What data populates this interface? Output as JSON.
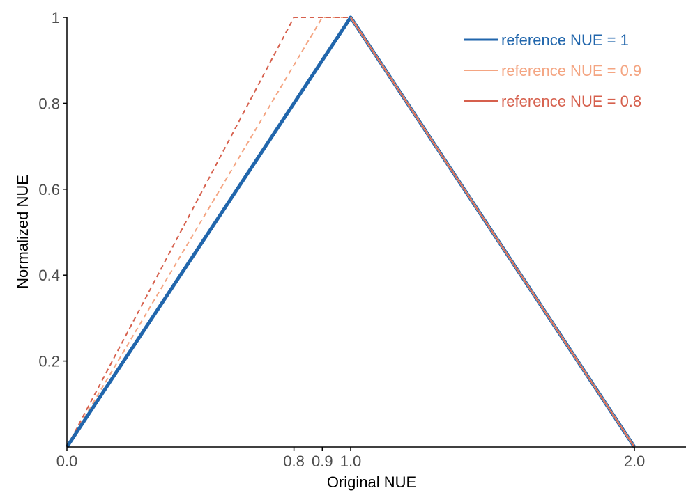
{
  "chart_data": {
    "type": "line",
    "title": "",
    "xlabel": "Original NUE",
    "ylabel": "Normalized NUE",
    "xlim": [
      0,
      2.2
    ],
    "ylim": [
      0,
      1
    ],
    "x_ticks": [
      0.0,
      0.8,
      0.9,
      1.0,
      2.0
    ],
    "x_tick_labels": [
      "0.0",
      "0.8",
      "0.9",
      "1.0",
      "2.0"
    ],
    "y_ticks": [
      0.2,
      0.4,
      0.6,
      0.8,
      1.0
    ],
    "y_tick_labels": [
      "0.2",
      "0.4",
      "0.6",
      "0.8",
      "1"
    ],
    "grid": false,
    "legend_position": "top-right",
    "series": [
      {
        "name": "reference NUE = 1",
        "color": "#2166ac",
        "style": "solid",
        "x": [
          0.0,
          1.0,
          2.0
        ],
        "y": [
          0.0,
          1.0,
          0.0
        ]
      },
      {
        "name": "reference NUE = 0.9",
        "color": "#f4a582",
        "style": "solid",
        "x": [
          1.0,
          2.0
        ],
        "y": [
          1.0,
          0.0
        ],
        "dashed_segment": {
          "x": [
            0.0,
            0.9,
            1.0
          ],
          "y": [
            0.0,
            1.0,
            1.0
          ]
        }
      },
      {
        "name": "reference NUE = 0.8",
        "color": "#d6604d",
        "style": "solid",
        "x": [
          1.0,
          2.0
        ],
        "y": [
          1.0,
          0.0
        ],
        "dashed_segment": {
          "x": [
            0.0,
            0.8,
            1.0
          ],
          "y": [
            0.0,
            1.0,
            1.0
          ]
        }
      }
    ]
  }
}
